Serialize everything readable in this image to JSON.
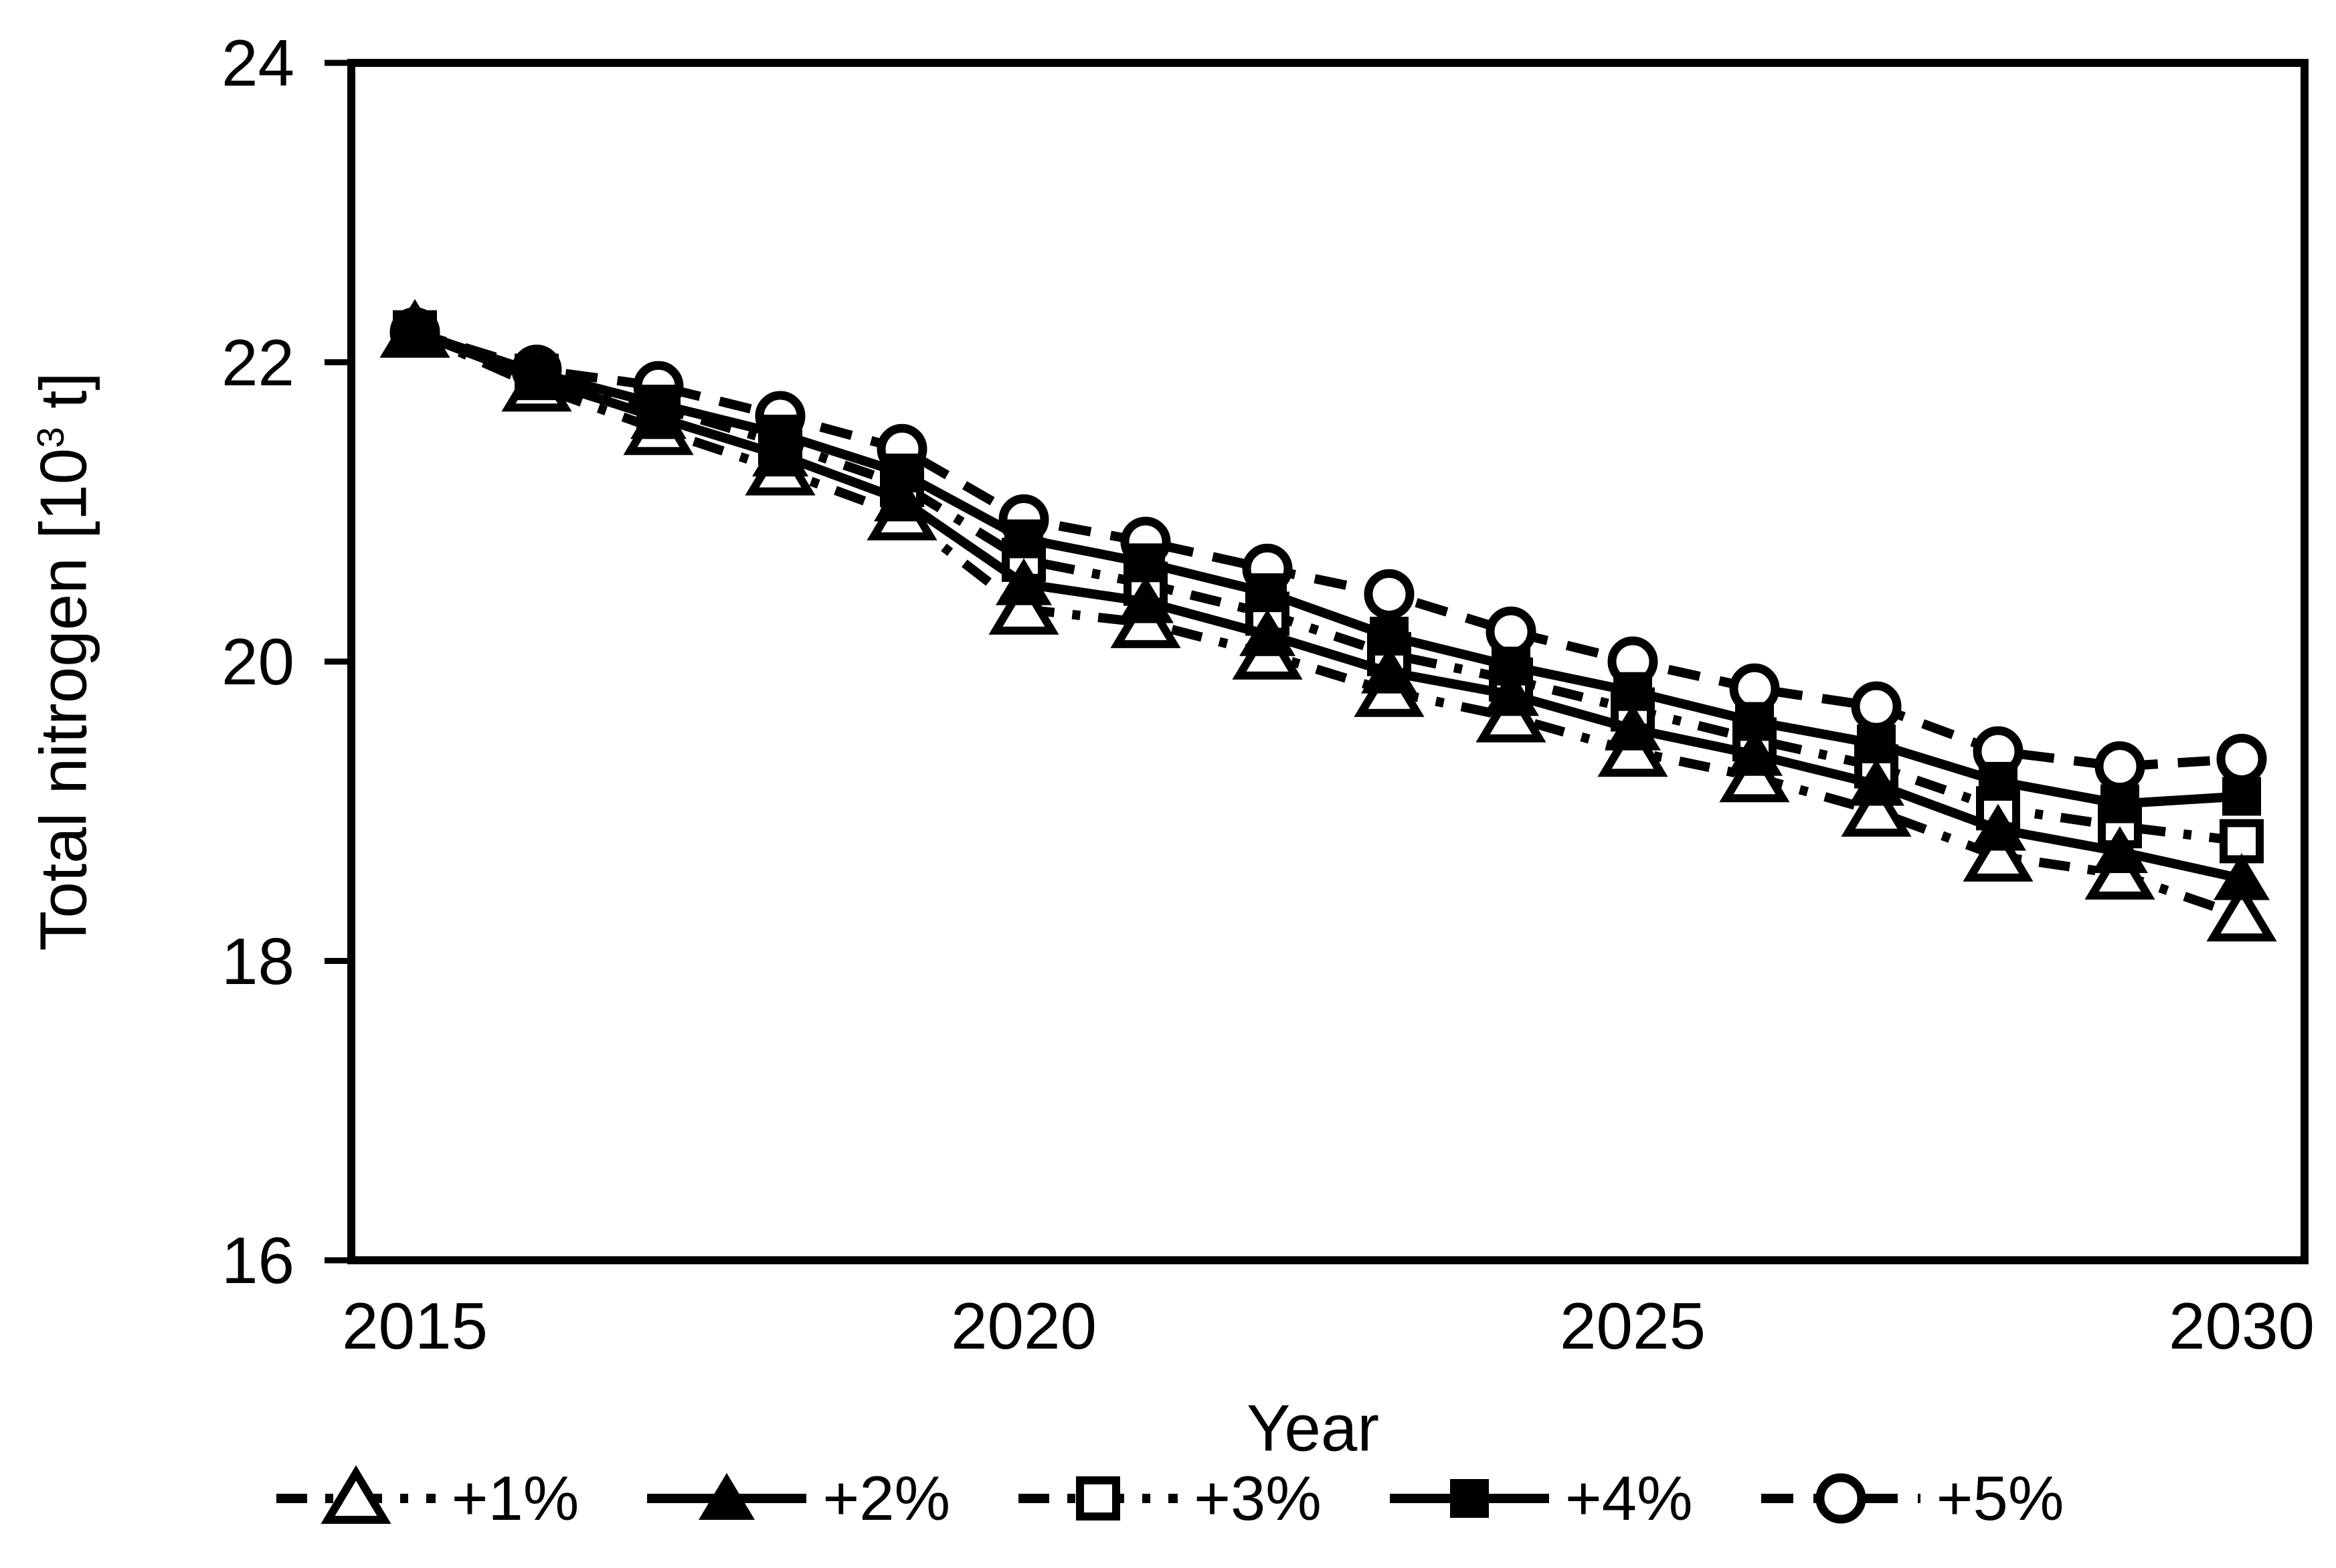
{
  "figure": {
    "background_color": "#ffffff",
    "ink_color": "#000000"
  },
  "chart_data": {
    "type": "line",
    "title": "",
    "xlabel": "Year",
    "ylabel": "Total nitrogen [10^3 t]",
    "ylabel_parts": {
      "prefix": "Total nitrogen [10",
      "sup": "3",
      "suffix": " t]"
    },
    "x": [
      2015,
      2016,
      2017,
      2018,
      2019,
      2020,
      2021,
      2022,
      2023,
      2024,
      2025,
      2026,
      2027,
      2028,
      2029,
      2030
    ],
    "xticks": [
      2015,
      2020,
      2025,
      2030
    ],
    "xtick_labels": [
      "2015",
      "2020",
      "2025",
      "2030"
    ],
    "yticks": [
      24,
      22,
      20,
      18,
      16
    ],
    "ytick_labels": [
      "24",
      "22",
      "20",
      "18",
      "16"
    ],
    "xlim": [
      2014.5,
      2030.5
    ],
    "ylim": [
      16,
      24
    ],
    "grid": false,
    "legend_position": "bottom",
    "series": [
      {
        "name": "+1%",
        "line": "dash-dot",
        "marker": "triangle-open",
        "values": [
          22.2,
          21.84,
          21.55,
          21.28,
          20.98,
          20.35,
          20.26,
          20.05,
          19.8,
          19.63,
          19.4,
          19.23,
          19.0,
          18.7,
          18.58,
          18.3
        ]
      },
      {
        "name": "+2%",
        "line": "solid",
        "marker": "triangle-filled",
        "values": [
          22.2,
          21.89,
          21.63,
          21.38,
          21.08,
          20.52,
          20.4,
          20.18,
          19.93,
          19.78,
          19.55,
          19.38,
          19.18,
          18.88,
          18.73,
          18.55
        ]
      },
      {
        "name": "+3%",
        "line": "dash-dot",
        "marker": "square-open",
        "values": [
          22.2,
          21.91,
          21.7,
          21.46,
          21.18,
          20.68,
          20.52,
          20.32,
          20.05,
          19.88,
          19.68,
          19.48,
          19.3,
          19.02,
          18.9,
          18.8
        ]
      },
      {
        "name": "+4%",
        "line": "solid",
        "marker": "square-filled",
        "values": [
          22.2,
          21.93,
          21.72,
          21.52,
          21.26,
          20.82,
          20.66,
          20.46,
          20.17,
          19.97,
          19.8,
          19.6,
          19.45,
          19.2,
          19.05,
          19.1
        ]
      },
      {
        "name": "+5%",
        "line": "dashed",
        "marker": "circle-open",
        "values": [
          22.2,
          21.95,
          21.84,
          21.64,
          21.42,
          20.95,
          20.8,
          20.62,
          20.45,
          20.2,
          20.0,
          19.82,
          19.7,
          19.4,
          19.3,
          19.35
        ]
      }
    ]
  }
}
